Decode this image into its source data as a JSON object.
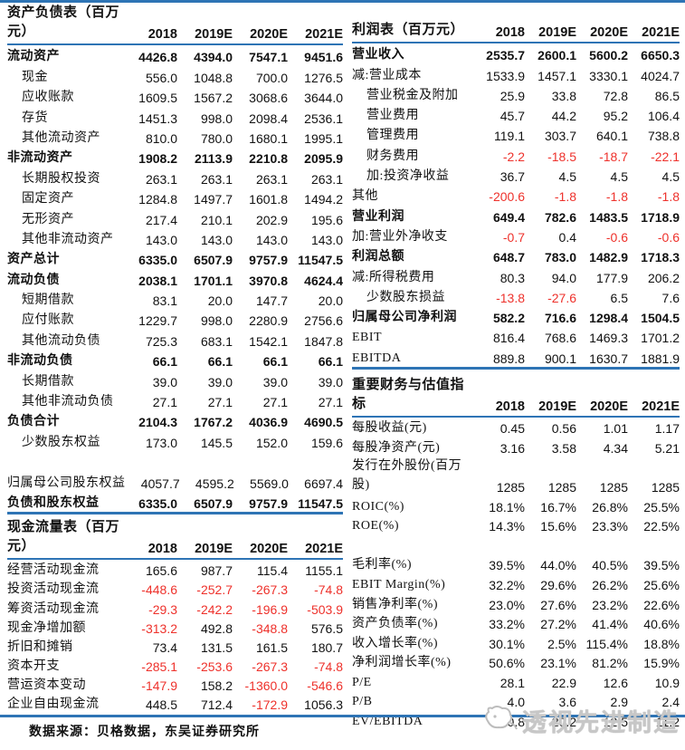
{
  "colors": {
    "accent_blue": "#2E74B5",
    "negative_red": "#EE312B"
  },
  "years": [
    "2018",
    "2019E",
    "2020E",
    "2021E"
  ],
  "page": {
    "footer_source": "数据来源：贝格数据，东吴证券研究所",
    "watermark_text": "透视先进制造"
  },
  "tables": {
    "balance_sheet": {
      "title": "资产负债表（百万元）",
      "rows": [
        {
          "label": "流动资产",
          "style": "section",
          "values": [
            "4426.8",
            "4394.0",
            "7547.1",
            "9451.6"
          ]
        },
        {
          "label": "现金",
          "style": "item",
          "values": [
            "556.0",
            "1048.8",
            "700.0",
            "1276.5"
          ]
        },
        {
          "label": "应收账款",
          "style": "item",
          "values": [
            "1609.5",
            "1567.2",
            "3068.6",
            "3644.0"
          ]
        },
        {
          "label": "存货",
          "style": "item",
          "values": [
            "1451.3",
            "998.0",
            "2098.4",
            "2536.1"
          ]
        },
        {
          "label": "其他流动资产",
          "style": "item",
          "values": [
            "810.0",
            "780.0",
            "1680.1",
            "1995.1"
          ]
        },
        {
          "label": "非流动资产",
          "style": "section",
          "values": [
            "1908.2",
            "2113.9",
            "2210.8",
            "2095.9"
          ]
        },
        {
          "label": "长期股权投资",
          "style": "item",
          "values": [
            "263.1",
            "263.1",
            "263.1",
            "263.1"
          ]
        },
        {
          "label": "固定资产",
          "style": "item",
          "values": [
            "1284.8",
            "1497.7",
            "1601.8",
            "1494.2"
          ]
        },
        {
          "label": "无形资产",
          "style": "item",
          "values": [
            "217.4",
            "210.1",
            "202.9",
            "195.6"
          ]
        },
        {
          "label": "其他非流动资产",
          "style": "item",
          "values": [
            "143.0",
            "143.0",
            "143.0",
            "143.0"
          ]
        },
        {
          "label": "资产总计",
          "style": "section",
          "values": [
            "6335.0",
            "6507.9",
            "9757.9",
            "11547.5"
          ]
        },
        {
          "label": "流动负债",
          "style": "section",
          "values": [
            "2038.1",
            "1701.1",
            "3970.8",
            "4624.4"
          ]
        },
        {
          "label": "短期借款",
          "style": "item",
          "values": [
            "83.1",
            "20.0",
            "147.7",
            "20.0"
          ]
        },
        {
          "label": "应付账款",
          "style": "item",
          "values": [
            "1229.7",
            "998.0",
            "2280.9",
            "2756.6"
          ]
        },
        {
          "label": "其他流动负债",
          "style": "item",
          "values": [
            "725.3",
            "683.1",
            "1542.1",
            "1847.8"
          ]
        },
        {
          "label": "非流动负债",
          "style": "section",
          "values": [
            "66.1",
            "66.1",
            "66.1",
            "66.1"
          ]
        },
        {
          "label": "长期借款",
          "style": "item",
          "values": [
            "39.0",
            "39.0",
            "39.0",
            "39.0"
          ]
        },
        {
          "label": "其他非流动负债",
          "style": "item",
          "values": [
            "27.1",
            "27.1",
            "27.1",
            "27.1"
          ]
        },
        {
          "label": "负债合计",
          "style": "section",
          "values": [
            "2104.3",
            "1767.2",
            "4036.9",
            "4690.5"
          ]
        },
        {
          "label": "少数股东权益",
          "style": "item",
          "values": [
            "173.0",
            "145.5",
            "152.0",
            "159.6"
          ]
        },
        {
          "label": "",
          "style": "spacer",
          "values": [
            "",
            "",
            "",
            ""
          ]
        },
        {
          "label": "归属母公司股东权益",
          "style": "plain",
          "values": [
            "4057.7",
            "4595.2",
            "5569.0",
            "6697.4"
          ]
        },
        {
          "label": "负债和股东权益",
          "style": "section",
          "values": [
            "6335.0",
            "6507.9",
            "9757.9",
            "11547.5"
          ]
        }
      ]
    },
    "cash_flow": {
      "title": "现金流量表（百万元）",
      "rows": [
        {
          "label": "经营活动现金流",
          "style": "plain",
          "values": [
            "165.6",
            "987.7",
            "115.4",
            "1155.1"
          ]
        },
        {
          "label": "投资活动现金流",
          "style": "plain",
          "values": [
            "-448.6",
            "-252.7",
            "-267.3",
            "-74.8"
          ]
        },
        {
          "label": "筹资活动现金流",
          "style": "plain",
          "values": [
            "-29.3",
            "-242.2",
            "-196.9",
            "-503.9"
          ]
        },
        {
          "label": "现金净增加额",
          "style": "plain",
          "values": [
            "-313.2",
            "492.8",
            "-348.8",
            "576.5"
          ]
        },
        {
          "label": "折旧和摊销",
          "style": "plain",
          "values": [
            "73.4",
            "131.5",
            "161.5",
            "180.7"
          ]
        },
        {
          "label": "资本开支",
          "style": "plain",
          "values": [
            "-285.1",
            "-253.6",
            "-267.3",
            "-74.8"
          ]
        },
        {
          "label": "营运资本变动",
          "style": "plain",
          "values": [
            "-147.9",
            "158.2",
            "-1360.0",
            "-546.6"
          ]
        },
        {
          "label": "企业自由现金流",
          "style": "plain",
          "values": [
            "448.5",
            "712.4",
            "-172.9",
            "1056.3"
          ]
        }
      ]
    },
    "income": {
      "title": "利润表（百万元）",
      "rows": [
        {
          "label": "营业收入",
          "style": "section",
          "values": [
            "2535.7",
            "2600.1",
            "5600.2",
            "6650.3"
          ]
        },
        {
          "label": "减:营业成本",
          "style": "plain",
          "values": [
            "1533.9",
            "1457.1",
            "3330.1",
            "4024.7"
          ]
        },
        {
          "label": "营业税金及附加",
          "style": "item",
          "values": [
            "25.9",
            "33.8",
            "72.8",
            "86.5"
          ]
        },
        {
          "label": "营业费用",
          "style": "item",
          "values": [
            "45.7",
            "44.2",
            "95.2",
            "106.4"
          ]
        },
        {
          "label": "管理费用",
          "style": "item",
          "values": [
            "119.1",
            "303.7",
            "640.1",
            "738.8"
          ]
        },
        {
          "label": "财务费用",
          "style": "item",
          "values": [
            "-2.2",
            "-18.5",
            "-18.7",
            "-22.1"
          ]
        },
        {
          "label": "加:投资净收益",
          "style": "item",
          "values": [
            "36.7",
            "4.5",
            "4.5",
            "4.5"
          ]
        },
        {
          "label": "其他",
          "style": "plain",
          "values": [
            "-200.6",
            "-1.8",
            "-1.8",
            "-1.8"
          ]
        },
        {
          "label": "营业利润",
          "style": "section",
          "values": [
            "649.4",
            "782.6",
            "1483.5",
            "1718.9"
          ]
        },
        {
          "label": "加:营业外净收支",
          "style": "plain",
          "values": [
            "-0.7",
            "0.4",
            "-0.6",
            "-0.6"
          ]
        },
        {
          "label": "利润总额",
          "style": "section",
          "values": [
            "648.7",
            "783.0",
            "1482.9",
            "1718.3"
          ]
        },
        {
          "label": "减:所得税费用",
          "style": "plain",
          "values": [
            "80.3",
            "94.0",
            "177.9",
            "206.2"
          ]
        },
        {
          "label": "少数股东损益",
          "style": "item",
          "values": [
            "-13.8",
            "-27.6",
            "6.5",
            "7.6"
          ]
        },
        {
          "label": "归属母公司净利润",
          "style": "section",
          "values": [
            "582.2",
            "716.6",
            "1298.4",
            "1504.5"
          ]
        },
        {
          "label": "EBIT",
          "style": "plain",
          "values": [
            "816.4",
            "768.6",
            "1469.3",
            "1701.2"
          ]
        },
        {
          "label": "EBITDA",
          "style": "plain",
          "values": [
            "889.8",
            "900.1",
            "1630.7",
            "1881.9"
          ]
        }
      ]
    },
    "metrics": {
      "title": "重要财务与估值指标",
      "rows": [
        {
          "label": "每股收益(元)",
          "style": "plain",
          "values": [
            "0.45",
            "0.56",
            "1.01",
            "1.17"
          ]
        },
        {
          "label": "每股净资产(元)",
          "style": "plain",
          "values": [
            "3.16",
            "3.58",
            "4.34",
            "5.21"
          ]
        },
        {
          "label": "发行在外股份(百万股)",
          "style": "wrap",
          "values": [
            "1285",
            "1285",
            "1285",
            "1285"
          ]
        },
        {
          "label": "ROIC(%)",
          "style": "plain",
          "values": [
            "18.1%",
            "16.7%",
            "26.8%",
            "25.5%"
          ]
        },
        {
          "label": "ROE(%)",
          "style": "plain",
          "values": [
            "14.3%",
            "15.6%",
            "23.3%",
            "22.5%"
          ]
        },
        {
          "label": "",
          "style": "spacer",
          "values": [
            "",
            "",
            "",
            ""
          ]
        },
        {
          "label": "毛利率(%)",
          "style": "plain",
          "values": [
            "39.5%",
            "44.0%",
            "40.5%",
            "39.5%"
          ]
        },
        {
          "label": "EBIT Margin(%)",
          "style": "plain",
          "values": [
            "32.2%",
            "29.6%",
            "26.2%",
            "25.6%"
          ]
        },
        {
          "label": "销售净利率(%)",
          "style": "plain",
          "values": [
            "23.0%",
            "27.6%",
            "23.2%",
            "22.6%"
          ]
        },
        {
          "label": "资产负债率(%)",
          "style": "plain",
          "values": [
            "33.2%",
            "27.2%",
            "41.4%",
            "40.6%"
          ]
        },
        {
          "label": "收入增长率(%)",
          "style": "plain",
          "values": [
            "30.1%",
            "2.5%",
            "115.4%",
            "18.8%"
          ]
        },
        {
          "label": "净利润增长率(%)",
          "style": "plain",
          "values": [
            "50.6%",
            "23.1%",
            "81.2%",
            "15.9%"
          ]
        },
        {
          "label": "P/E",
          "style": "plain",
          "values": [
            "28.1",
            "22.9",
            "12.6",
            "10.9"
          ]
        },
        {
          "label": "P/B",
          "style": "plain",
          "values": [
            "4.0",
            "3.6",
            "2.9",
            "2.4"
          ]
        },
        {
          "label": "EV/EBITDA",
          "style": "plain",
          "values": [
            "20.8",
            "20.2",
            "12.5",
            "11.2"
          ]
        }
      ]
    }
  }
}
